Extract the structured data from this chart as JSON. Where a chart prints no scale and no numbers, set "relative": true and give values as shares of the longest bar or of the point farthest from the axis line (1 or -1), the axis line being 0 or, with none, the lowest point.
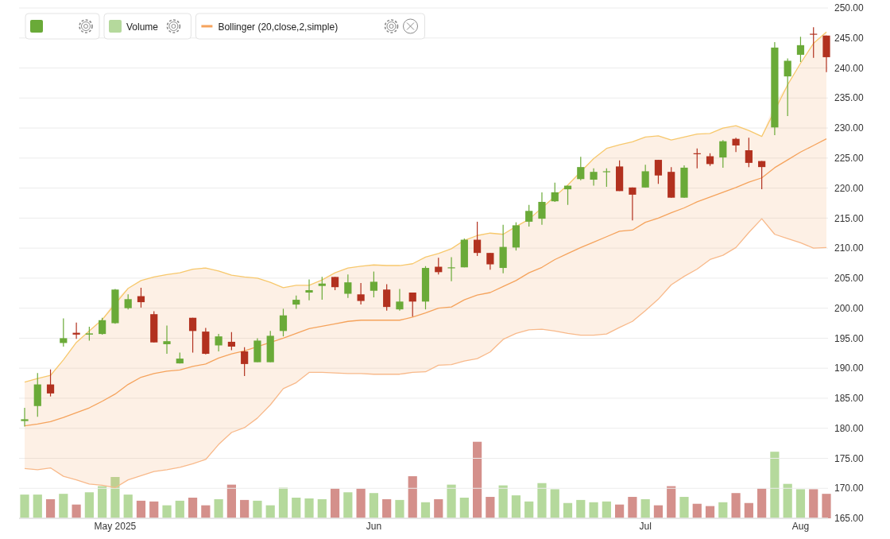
{
  "chart_data": [
    {
      "type": "candlestick",
      "categories": [
        null,
        null,
        null,
        null,
        null,
        null,
        null,
        "May 2025",
        null,
        null,
        null,
        null,
        null,
        null,
        null,
        null,
        null,
        null,
        null,
        null,
        null,
        null,
        null,
        null,
        null,
        null,
        null,
        "Jun",
        null,
        null,
        null,
        null,
        null,
        null,
        null,
        null,
        null,
        null,
        null,
        null,
        null,
        null,
        null,
        null,
        null,
        null,
        null,
        null,
        "Jul",
        null,
        null,
        null,
        null,
        null,
        null,
        null,
        null,
        null,
        null,
        null,
        "Aug",
        null,
        null
      ],
      "ohlc": [
        [
          181.2,
          183.4,
          180.3,
          181.5
        ],
        [
          183.7,
          189.2,
          181.9,
          187.3
        ],
        [
          187.3,
          189.8,
          185.3,
          185.8
        ],
        [
          194.2,
          198.3,
          193.6,
          195.0
        ],
        [
          195.9,
          197.6,
          194.9,
          195.6
        ],
        [
          195.6,
          196.9,
          194.6,
          195.8
        ],
        [
          195.7,
          198.4,
          195.6,
          198.0
        ],
        [
          197.5,
          203.2,
          197.4,
          203.1
        ],
        [
          200.0,
          202.3,
          199.8,
          201.5
        ],
        [
          202.0,
          203.4,
          200.1,
          201.0
        ],
        [
          199.0,
          199.5,
          194.3,
          194.3
        ],
        [
          194.0,
          197.1,
          192.4,
          194.5
        ],
        [
          190.8,
          192.6,
          190.8,
          191.6
        ],
        [
          198.4,
          198.4,
          192.6,
          196.2
        ],
        [
          196.1,
          196.7,
          192.3,
          192.4
        ],
        [
          193.8,
          195.7,
          192.8,
          195.3
        ],
        [
          194.4,
          196.0,
          193.0,
          193.6
        ],
        [
          192.8,
          193.5,
          188.7,
          190.7
        ],
        [
          191.0,
          195.0,
          191.0,
          194.6
        ],
        [
          191.0,
          196.2,
          191.0,
          195.4
        ],
        [
          196.2,
          199.9,
          195.3,
          198.8
        ],
        [
          200.6,
          202.1,
          199.9,
          201.4
        ],
        [
          202.6,
          204.8,
          201.3,
          203.0
        ],
        [
          203.7,
          205.2,
          201.4,
          204.1
        ],
        [
          205.2,
          205.2,
          203.0,
          203.5
        ],
        [
          202.4,
          205.6,
          201.7,
          204.3
        ],
        [
          202.3,
          204.2,
          200.6,
          201.2
        ],
        [
          202.9,
          206.1,
          201.8,
          204.4
        ],
        [
          203.1,
          204.0,
          199.6,
          200.2
        ],
        [
          199.8,
          203.2,
          199.6,
          201.1
        ],
        [
          202.6,
          202.6,
          198.6,
          201.1
        ],
        [
          201.1,
          207.0,
          199.8,
          206.7
        ],
        [
          206.9,
          208.4,
          205.6,
          206.0
        ],
        [
          206.7,
          208.5,
          204.5,
          206.8
        ],
        [
          206.8,
          211.6,
          206.8,
          211.4
        ],
        [
          211.4,
          214.4,
          208.7,
          209.2
        ],
        [
          209.2,
          209.2,
          206.4,
          207.3
        ],
        [
          206.7,
          213.9,
          205.8,
          210.2
        ],
        [
          210.1,
          214.3,
          209.6,
          213.8
        ],
        [
          214.4,
          217.2,
          213.6,
          216.2
        ],
        [
          214.9,
          219.3,
          213.9,
          217.7
        ],
        [
          217.8,
          220.9,
          217.7,
          219.3
        ],
        [
          219.8,
          220.4,
          217.2,
          220.4
        ],
        [
          221.5,
          225.2,
          221.3,
          223.5
        ],
        [
          221.4,
          223.3,
          220.4,
          222.7
        ],
        [
          222.7,
          223.3,
          220.2,
          222.8
        ],
        [
          223.6,
          224.6,
          219.5,
          219.5
        ],
        [
          220.1,
          220.1,
          214.6,
          218.9
        ],
        [
          220.1,
          223.9,
          220.1,
          222.8
        ],
        [
          224.7,
          224.7,
          220.7,
          222.1
        ],
        [
          222.7,
          223.5,
          218.4,
          218.4
        ],
        [
          218.4,
          223.8,
          218.4,
          223.4
        ],
        [
          225.8,
          226.6,
          223.3,
          225.7
        ],
        [
          225.3,
          225.8,
          223.7,
          224.0
        ],
        [
          225.1,
          228.0,
          223.4,
          227.8
        ],
        [
          228.2,
          228.4,
          226.0,
          227.1
        ],
        [
          226.3,
          228.4,
          223.5,
          224.2
        ],
        [
          224.5,
          224.5,
          219.8,
          223.5
        ],
        [
          230.1,
          244.3,
          228.8,
          243.4
        ],
        [
          238.6,
          241.6,
          232.0,
          241.2
        ],
        [
          242.2,
          245.2,
          241.0,
          243.8
        ],
        [
          245.7,
          246.8,
          241.7,
          245.6
        ],
        [
          245.4,
          245.4,
          239.3,
          241.8
        ]
      ],
      "colors": [
        "#6aaa38",
        "#6aaa38",
        "#b2311f",
        "#6aaa38",
        "#b2311f",
        "#6aaa38",
        "#6aaa38",
        "#6aaa38",
        "#6aaa38",
        "#b2311f",
        "#b2311f",
        "#6aaa38",
        "#6aaa38",
        "#b2311f",
        "#b2311f",
        "#6aaa38",
        "#b2311f",
        "#b2311f",
        "#6aaa38",
        "#6aaa38",
        "#6aaa38",
        "#6aaa38",
        "#6aaa38",
        "#6aaa38",
        "#b2311f",
        "#6aaa38",
        "#b2311f",
        "#6aaa38",
        "#b2311f",
        "#6aaa38",
        "#b2311f",
        "#6aaa38",
        "#b2311f",
        "#6aaa38",
        "#6aaa38",
        "#b2311f",
        "#b2311f",
        "#6aaa38",
        "#6aaa38",
        "#6aaa38",
        "#6aaa38",
        "#6aaa38",
        "#6aaa38",
        "#6aaa38",
        "#6aaa38",
        "#6aaa38",
        "#b2311f",
        "#b2311f",
        "#6aaa38",
        "#b2311f",
        "#b2311f",
        "#6aaa38",
        "#b2311f",
        "#b2311f",
        "#6aaa38",
        "#b2311f",
        "#b2311f",
        "#b2311f",
        "#6aaa38",
        "#6aaa38",
        "#6aaa38",
        "#b2311f",
        "#b2311f"
      ],
      "ylim": [
        165,
        250
      ],
      "yticks": [
        {
          "value": 165,
          "label": "165.00"
        },
        {
          "value": 170,
          "label": "170.00"
        },
        {
          "value": 175,
          "label": "175.00"
        },
        {
          "value": 180,
          "label": "180.00"
        },
        {
          "value": 185,
          "label": "185.00"
        },
        {
          "value": 190,
          "label": "190.00"
        },
        {
          "value": 195,
          "label": "195.00"
        },
        {
          "value": 200,
          "label": "200.00"
        },
        {
          "value": 205,
          "label": "205.00"
        },
        {
          "value": 210,
          "label": "210.00"
        },
        {
          "value": 215,
          "label": "215.00"
        },
        {
          "value": 220,
          "label": "220.00"
        },
        {
          "value": 225,
          "label": "225.00"
        },
        {
          "value": 230,
          "label": "230.00"
        },
        {
          "value": 235,
          "label": "235.00"
        },
        {
          "value": 240,
          "label": "240.00"
        },
        {
          "value": 245,
          "label": "245.00"
        },
        {
          "value": 250,
          "label": "250.00"
        }
      ],
      "grid": "y",
      "legend": "top left",
      "series": [
        {
          "type": "line",
          "name": "Bollinger (20,close,2,simple)",
          "color": "#f5a35c",
          "values": [
            180.4,
            180.7,
            181.1,
            181.8,
            182.6,
            183.4,
            184.5,
            185.7,
            187.3,
            188.5,
            189.1,
            189.5,
            189.7,
            190.3,
            190.7,
            191.7,
            192.4,
            192.9,
            null,
            null,
            195.0,
            195.8,
            196.6,
            197.0,
            197.4,
            197.8,
            198.0,
            198.0,
            198.0,
            198.0,
            198.5,
            199.2,
            200.0,
            200.2,
            201.4,
            202.2,
            202.6,
            203.6,
            204.6,
            205.9,
            206.8,
            208.1,
            209.1,
            210.1,
            211.0,
            211.9,
            212.8,
            213.0,
            214.3,
            215.0,
            215.9,
            216.7,
            217.7,
            218.5,
            219.3,
            220.1,
            221.0,
            221.7,
            223.4,
            224.7,
            226.0,
            227.1,
            228.2
          ],
          "upper": [
            187.7,
            188.3,
            188.8,
            191.4,
            194.3,
            196.2,
            198.1,
            201.4,
            203.3,
            204.6,
            205.2,
            205.6,
            205.9,
            206.5,
            206.7,
            206.2,
            205.5,
            205.2,
            205.0,
            204.3,
            203.4,
            203.8,
            203.8,
            204.7,
            205.9,
            206.7,
            207.0,
            207.2,
            207.1,
            207.1,
            207.4,
            208.5,
            209.1,
            209.9,
            211.3,
            212.1,
            212.5,
            212.3,
            213.6,
            214.8,
            216.5,
            218.7,
            220.5,
            222.9,
            224.9,
            226.6,
            227.2,
            227.7,
            228.5,
            228.7,
            228.0,
            228.5,
            229.0,
            229.1,
            230.0,
            230.4,
            229.6,
            228.6,
            234.2,
            237.2,
            240.8,
            244.1,
            246.0
          ],
          "lower": [
            173.3,
            173.1,
            173.4,
            172.0,
            171.4,
            170.7,
            170.5,
            170.1,
            171.4,
            172.1,
            172.8,
            173.1,
            173.5,
            174.1,
            174.8,
            177.3,
            179.3,
            180.1,
            181.7,
            183.9,
            186.6,
            187.6,
            189.3,
            189.3,
            189.2,
            189.1,
            189.1,
            189.0,
            189.0,
            189.0,
            189.3,
            189.4,
            190.5,
            190.6,
            191.2,
            191.6,
            192.7,
            194.8,
            195.8,
            196.4,
            196.5,
            196.2,
            195.8,
            195.5,
            195.5,
            195.7,
            196.8,
            197.8,
            199.6,
            201.5,
            203.9,
            205.3,
            206.5,
            208.1,
            208.8,
            210.1,
            212.6,
            214.9,
            212.3,
            211.6,
            210.9,
            210.0,
            210.1
          ]
        },
        {
          "type": "line",
          "color": "#f7c86c",
          "values": [
            187.7,
            188.3,
            188.8,
            191.4,
            194.3,
            196.2,
            198.1,
            null,
            203.3,
            204.6,
            205.2,
            205.6,
            205.9,
            206.5,
            206.7,
            206.2,
            205.5,
            205.2,
            205.0,
            204.3,
            203.4,
            203.8,
            203.8,
            204.7,
            205.9,
            206.7,
            207.0,
            207.2,
            207.1,
            207.1,
            207.4,
            208.5,
            209.1,
            209.9,
            211.3,
            212.1,
            212.5,
            212.3,
            213.6,
            214.8,
            null,
            null,
            220.5,
            null,
            224.9,
            226.6,
            227.2,
            227.7,
            228.5,
            228.7,
            228.0,
            228.5,
            229.0,
            229.1,
            230.0,
            230.4,
            229.6,
            228.6,
            null,
            237.2,
            240.8,
            244.1,
            246.0
          ]
        },
        {
          "type": "line",
          "color": "#f8b98a",
          "values": [
            173.3,
            173.1,
            173.4,
            172.0,
            171.4,
            170.7,
            170.5,
            170.1,
            171.4,
            172.1,
            172.8,
            173.1,
            173.5,
            174.1,
            174.8,
            177.3,
            179.3,
            180.1,
            181.7,
            183.9,
            186.6,
            187.6,
            189.3,
            189.3,
            189.2,
            189.1,
            189.1,
            189.0,
            189.0,
            189.0,
            189.3,
            189.4,
            190.5,
            190.6,
            191.2,
            191.6,
            192.7,
            194.8,
            195.8,
            196.4,
            196.5,
            196.2,
            195.8,
            195.5,
            195.5,
            195.7,
            196.8,
            197.8,
            199.6,
            201.5,
            203.9,
            205.3,
            206.5,
            208.1,
            208.8,
            210.1,
            212.6,
            214.9,
            212.3,
            211.6,
            210.9,
            210.0,
            210.1
          ]
        }
      ]
    },
    {
      "type": "bar",
      "relative": true,
      "legend": "top left",
      "categories": [
        null,
        null,
        null,
        null,
        null,
        null,
        null,
        null,
        null,
        null,
        null,
        null,
        null,
        null,
        null,
        null,
        null,
        null,
        null,
        null,
        null,
        null,
        null,
        null,
        null,
        null,
        null,
        null,
        null,
        null,
        null,
        null,
        null,
        null,
        null,
        null,
        null,
        null,
        null,
        null,
        null,
        null,
        null,
        null,
        null,
        null,
        null,
        null,
        null,
        null,
        null,
        null,
        null,
        null,
        null,
        null,
        null,
        null,
        null,
        null,
        null,
        null,
        null
      ],
      "series": [
        {
          "name": "Volume",
          "color": "#b5d99c",
          "colors": [
            "#b5d99c",
            "#b5d99c",
            "#d4908b",
            "#b5d99c",
            "#d4908b",
            "#b5d99c",
            "#b5d99c",
            "#b5d99c",
            "#b5d99c",
            "#d4908b",
            "#d4908b",
            "#b5d99c",
            "#b5d99c",
            "#d4908b",
            "#d4908b",
            "#b5d99c",
            "#d4908b",
            "#d4908b",
            "#b5d99c",
            "#b5d99c",
            "#b5d99c",
            "#b5d99c",
            "#b5d99c",
            "#b5d99c",
            "#d4908b",
            "#b5d99c",
            "#d4908b",
            "#b5d99c",
            "#d4908b",
            "#b5d99c",
            "#d4908b",
            "#b5d99c",
            "#d4908b",
            "#b5d99c",
            "#b5d99c",
            "#d4908b",
            "#d4908b",
            "#b5d99c",
            "#b5d99c",
            "#b5d99c",
            "#b5d99c",
            "#b5d99c",
            "#b5d99c",
            "#b5d99c",
            "#b5d99c",
            "#b5d99c",
            "#d4908b",
            "#d4908b",
            "#b5d99c",
            "#d4908b",
            "#d4908b",
            "#b5d99c",
            "#d4908b",
            "#d4908b",
            "#b5d99c",
            "#d4908b",
            "#d4908b",
            "#d4908b",
            "#b5d99c",
            "#b5d99c",
            "#b5d99c",
            "#d4908b",
            "#d4908b"
          ],
          "values": [
            0.31,
            0.31,
            0.25,
            0.32,
            0.18,
            0.34,
            0.42,
            0.54,
            0.31,
            0.23,
            0.22,
            0.17,
            0.23,
            0.27,
            0.17,
            0.25,
            0.44,
            0.24,
            0.23,
            0.17,
            0.4,
            0.27,
            0.26,
            0.25,
            0.39,
            0.34,
            0.39,
            0.33,
            0.25,
            0.24,
            0.55,
            0.21,
            0.25,
            0.44,
            0.27,
            1,
            0.28,
            0.43,
            0.3,
            0.22,
            0.46,
            0.38,
            0.2,
            0.24,
            0.21,
            0.22,
            0.18,
            0.28,
            0.25,
            0.17,
            0.42,
            0.28,
            0.19,
            0.16,
            0.21,
            0.33,
            0.2,
            0.39,
            0.87,
            0.45,
            0.38,
            0.38,
            0.32
          ]
        }
      ]
    }
  ]
}
